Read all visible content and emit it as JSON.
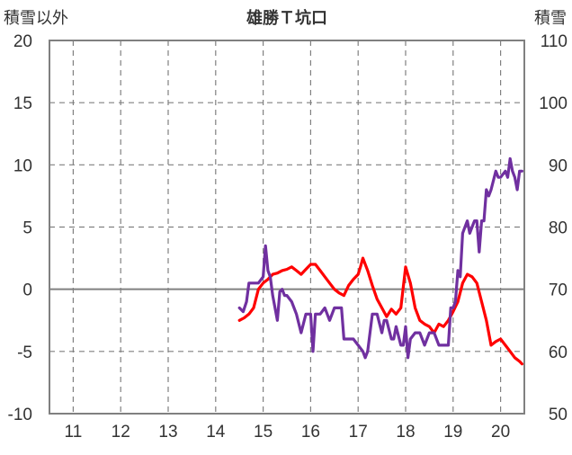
{
  "chart_data": {
    "type": "line",
    "title": "雄勝Ｔ坑口",
    "y_left_label": "積雪以外",
    "y_right_label": "積雪",
    "x_categories": [
      "11",
      "12",
      "13",
      "14",
      "15",
      "16",
      "17",
      "18",
      "19",
      "20"
    ],
    "x_range": [
      10.5,
      20.5
    ],
    "y_left_range": [
      -10,
      20
    ],
    "y_left_ticks": [
      "20",
      "15",
      "10",
      "5",
      "0",
      "-5",
      "-10"
    ],
    "y_right_range": [
      50,
      110
    ],
    "y_right_ticks": [
      "110",
      "100",
      "90",
      "80",
      "70",
      "60",
      "50"
    ],
    "grid": true,
    "series": [
      {
        "axis": "left",
        "color": "#ff0000",
        "x": [
          14.5,
          14.6,
          14.7,
          14.8,
          14.9,
          15.0,
          15.1,
          15.2,
          15.3,
          15.4,
          15.5,
          15.6,
          15.7,
          15.8,
          15.9,
          16.0,
          16.1,
          16.2,
          16.3,
          16.4,
          16.5,
          16.6,
          16.7,
          16.8,
          16.9,
          17.0,
          17.05,
          17.1,
          17.2,
          17.3,
          17.4,
          17.5,
          17.6,
          17.7,
          17.8,
          17.9,
          18.0,
          18.1,
          18.2,
          18.3,
          18.4,
          18.5,
          18.6,
          18.7,
          18.8,
          18.9,
          19.0,
          19.1,
          19.2,
          19.3,
          19.4,
          19.5,
          19.6,
          19.7,
          19.8,
          19.9,
          20.0,
          20.1,
          20.2,
          20.3,
          20.4,
          20.45
        ],
        "y": [
          -2.5,
          -2.3,
          -2.0,
          -1.5,
          0.0,
          0.5,
          0.8,
          1.2,
          1.3,
          1.5,
          1.6,
          1.8,
          1.5,
          1.2,
          1.6,
          2.0,
          2.0,
          1.5,
          1.0,
          0.5,
          0.0,
          -0.3,
          -0.5,
          0.3,
          0.8,
          1.2,
          1.8,
          2.5,
          1.5,
          0.3,
          -0.8,
          -1.5,
          -2.2,
          -1.6,
          -2.0,
          -1.5,
          1.8,
          0.5,
          -1.5,
          -2.5,
          -2.8,
          -3.0,
          -3.5,
          -2.8,
          -3.0,
          -2.5,
          -1.8,
          -1.0,
          0.5,
          1.2,
          1.0,
          0.5,
          -1.0,
          -2.5,
          -4.5,
          -4.2,
          -4.0,
          -4.5,
          -5.0,
          -5.5,
          -5.8,
          -6.0
        ]
      },
      {
        "axis": "left",
        "color": "#7030a0",
        "x": [
          14.5,
          14.58,
          14.65,
          14.7,
          14.8,
          14.9,
          15.0,
          15.05,
          15.1,
          15.15,
          15.2,
          15.3,
          15.35,
          15.4,
          15.45,
          15.5,
          15.6,
          15.7,
          15.8,
          15.9,
          16.0,
          16.05,
          16.1,
          16.2,
          16.3,
          16.4,
          16.5,
          16.6,
          16.65,
          16.7,
          16.8,
          16.9,
          17.0,
          17.1,
          17.15,
          17.2,
          17.3,
          17.35,
          17.4,
          17.5,
          17.55,
          17.6,
          17.7,
          17.75,
          17.8,
          17.9,
          17.95,
          18.0,
          18.05,
          18.1,
          18.2,
          18.3,
          18.4,
          18.5,
          18.6,
          18.7,
          18.8,
          18.9,
          18.95,
          19.0,
          19.05,
          19.1,
          19.15,
          19.2,
          19.25,
          19.3,
          19.35,
          19.4,
          19.45,
          19.5,
          19.55,
          19.6,
          19.65,
          19.7,
          19.75,
          19.8,
          19.9,
          19.95,
          20.0,
          20.1,
          20.15,
          20.2,
          20.25,
          20.3,
          20.35,
          20.4,
          20.45
        ],
        "y": [
          -1.5,
          -1.8,
          -1.0,
          0.5,
          0.5,
          0.5,
          1.0,
          3.5,
          1.5,
          1.0,
          -0.5,
          -2.5,
          -0.2,
          0.0,
          -0.5,
          -0.5,
          -1.0,
          -2.0,
          -3.5,
          -2.0,
          -2.0,
          -5.0,
          -2.0,
          -2.0,
          -1.5,
          -2.5,
          -1.5,
          -1.5,
          -1.5,
          -4.0,
          -4.0,
          -4.0,
          -4.5,
          -5.0,
          -5.5,
          -5.0,
          -2.0,
          -2.0,
          -2.0,
          -3.5,
          -2.5,
          -2.5,
          -4.0,
          -4.0,
          -3.0,
          -4.5,
          -4.5,
          -3.0,
          -5.5,
          -4.0,
          -3.5,
          -3.5,
          -4.5,
          -3.5,
          -3.5,
          -4.5,
          -4.5,
          -4.5,
          -1.5,
          -1.5,
          -1.0,
          1.5,
          1.0,
          4.5,
          5.0,
          5.5,
          4.5,
          5.0,
          5.5,
          5.5,
          3.0,
          5.5,
          5.5,
          8.0,
          7.5,
          8.0,
          9.5,
          9.0,
          9.0,
          9.5,
          9.0,
          10.5,
          9.5,
          9.0,
          8.0,
          9.5,
          9.5
        ]
      }
    ]
  }
}
